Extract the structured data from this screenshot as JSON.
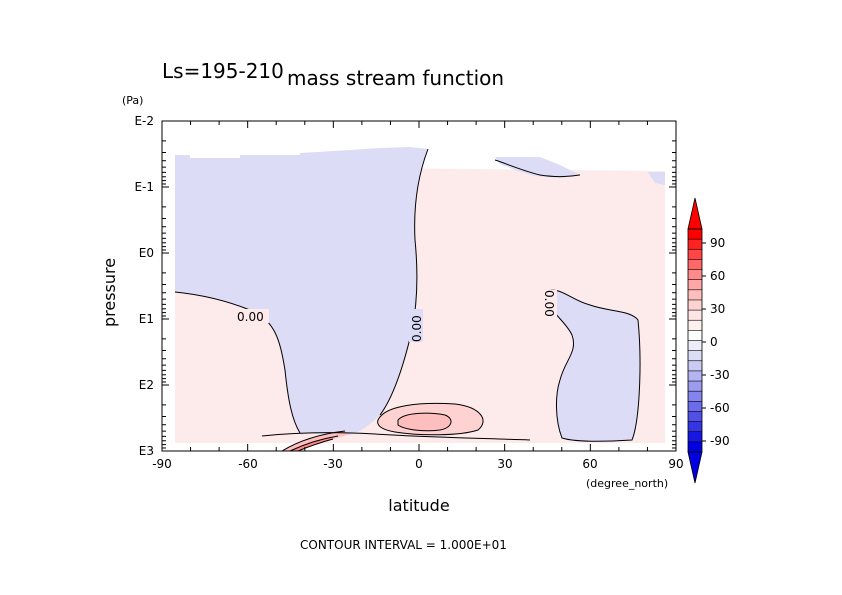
{
  "chart_data": {
    "type": "contour",
    "title": "mass stream function",
    "subtitle": "Ls=195-210",
    "xlabel": "latitude",
    "x_unit": "(degree_north)",
    "ylabel": "pressure",
    "y_unit": "(Pa)",
    "y_scale": "log",
    "xlim": [
      -90,
      90
    ],
    "ylim": [
      1000,
      0.01
    ],
    "x_ticks": [
      "-90",
      "-60",
      "-30",
      "0",
      "30",
      "60",
      "90"
    ],
    "y_ticks": [
      "E-2",
      "E-1",
      "E0",
      "E1",
      "E2",
      "E3"
    ],
    "contour_labels": [
      "0.00",
      "0.00",
      "0.00"
    ],
    "contour_interval_text": "CONTOUR INTERVAL = 1.000E+01",
    "colorbar": {
      "labels": [
        "90",
        "60",
        "30",
        "0",
        "-30",
        "-60",
        "-90"
      ],
      "levels": [
        110,
        100,
        90,
        80,
        70,
        60,
        50,
        40,
        30,
        20,
        10,
        0,
        -10,
        -20,
        -30,
        -40,
        -50,
        -60,
        -70,
        -80,
        -90,
        -100,
        -110
      ],
      "colors": [
        "#ff0000",
        "#ff2222",
        "#ff4545",
        "#ff6868",
        "#ff8a8a",
        "#ffa6a6",
        "#ffbebe",
        "#ffd2d2",
        "#ffe4e4",
        "#fff0f0",
        "#ffffff",
        "#ececfa",
        "#dcdcf7",
        "#cacaf5",
        "#b4b4f3",
        "#9c9cef",
        "#8484ec",
        "#6c6cea",
        "#5050e8",
        "#3535e6",
        "#1818e4",
        "#0000e0"
      ]
    },
    "regions": [
      {
        "name": "southern-hemisphere upper negative cell",
        "sign": "negative",
        "approx_value": -5
      },
      {
        "name": "northern-hemisphere positive cell",
        "sign": "positive",
        "approx_value": 5
      },
      {
        "name": "southern lower positive region",
        "sign": "positive",
        "approx_value": 5
      },
      {
        "name": "northern negative cell",
        "sign": "negative",
        "approx_value": -5
      },
      {
        "name": "equatorial near-surface positive core",
        "sign": "positive",
        "approx_value": 20
      },
      {
        "name": "southern near-surface strong positive band",
        "sign": "positive",
        "approx_value": 40
      }
    ]
  }
}
